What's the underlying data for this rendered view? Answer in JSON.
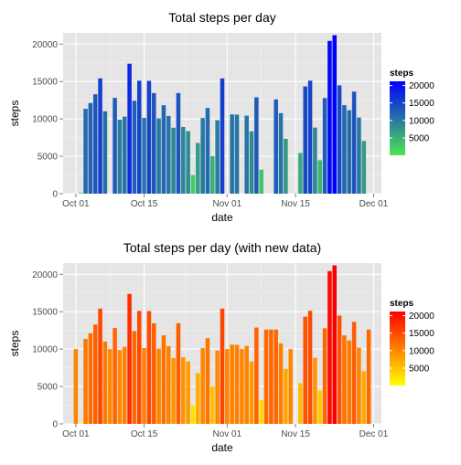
{
  "chart_data": [
    {
      "type": "bar",
      "title": "Total steps per day",
      "xlabel": "date",
      "ylabel": "steps",
      "x_start": "2012-10-01",
      "x_ticks": [
        "Oct 01",
        "Oct 15",
        "Nov 01",
        "Nov 15",
        "Dec 01"
      ],
      "y_ticks": [
        0,
        5000,
        10000,
        15000,
        20000
      ],
      "ylim": [
        0,
        21500
      ],
      "grid": true,
      "legend": {
        "title": "steps",
        "position": "right",
        "breaks": [
          5000,
          10000,
          15000,
          20000
        ],
        "low_color": "#4ee64e",
        "high_color": "#0000ff",
        "range": [
          41,
          21194
        ]
      },
      "values": [
        0,
        126,
        11352,
        12116,
        13294,
        15420,
        11015,
        0,
        12811,
        9900,
        10304,
        17382,
        12426,
        15098,
        10139,
        15084,
        13452,
        10056,
        11829,
        10395,
        8821,
        13460,
        8918,
        8355,
        2492,
        6778,
        10119,
        11458,
        5018,
        9819,
        15414,
        0,
        10600,
        10571,
        0,
        10439,
        8334,
        12883,
        3219,
        0,
        0,
        12608,
        10765,
        7336,
        0,
        41,
        5441,
        14339,
        15110,
        8841,
        4472,
        12787,
        20427,
        21194,
        14478,
        11834,
        11162,
        13646,
        10183,
        7047,
        0
      ]
    },
    {
      "type": "bar",
      "title": "Total steps per day (with new data)",
      "xlabel": "date",
      "ylabel": "steps",
      "x_start": "2012-10-01",
      "x_ticks": [
        "Oct 01",
        "Oct 15",
        "Nov 01",
        "Nov 15",
        "Dec 01"
      ],
      "y_ticks": [
        0,
        5000,
        10000,
        15000,
        20000
      ],
      "ylim": [
        0,
        21500
      ],
      "grid": true,
      "legend": {
        "title": "steps",
        "position": "right",
        "breaks": [
          5000,
          10000,
          15000,
          20000
        ],
        "low_color": "#ffff00",
        "high_color": "#ff0000",
        "range": [
          41,
          21194
        ]
      },
      "values": [
        10009,
        126,
        11352,
        12116,
        13294,
        15420,
        11015,
        10009,
        12811,
        9900,
        10304,
        17382,
        12426,
        15098,
        10139,
        15084,
        13452,
        10056,
        11829,
        10395,
        8821,
        13460,
        8918,
        8355,
        2492,
        6778,
        10119,
        11458,
        5018,
        9819,
        15414,
        10009,
        10600,
        10571,
        10009,
        10439,
        8334,
        12883,
        3219,
        12608,
        12608,
        12608,
        10765,
        7336,
        10009,
        41,
        5441,
        14339,
        15110,
        8841,
        4472,
        12787,
        20427,
        21194,
        14478,
        11834,
        11162,
        13646,
        10183,
        7047,
        12608
      ]
    }
  ]
}
